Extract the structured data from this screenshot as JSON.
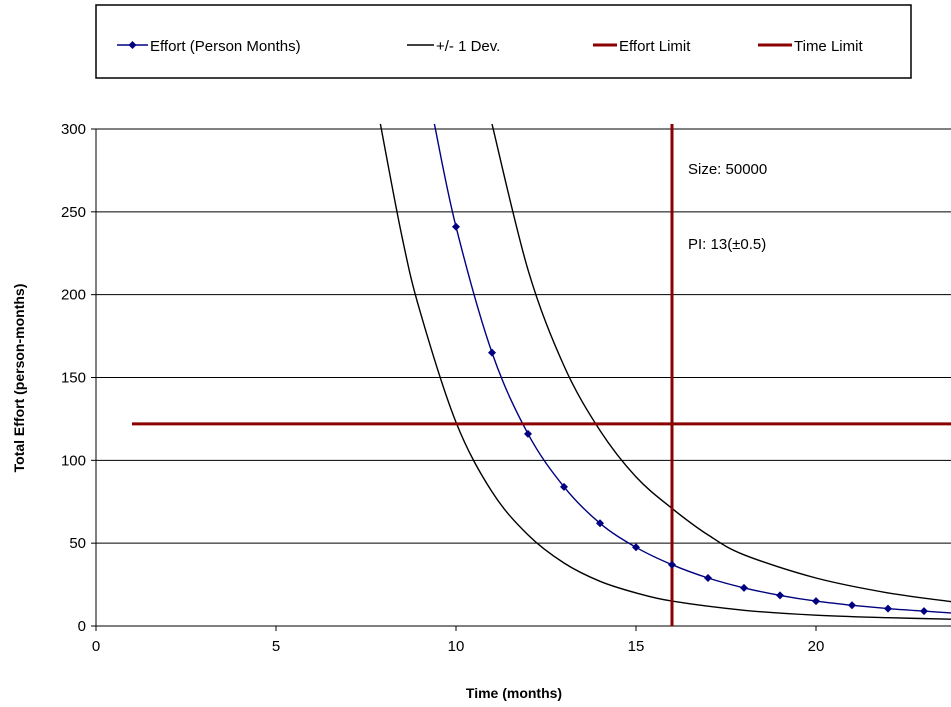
{
  "chart_data": {
    "type": "line",
    "title": "",
    "xlabel": "Time (months)",
    "ylabel": "Total Effort (person-months)",
    "xlim": [
      0,
      24
    ],
    "ylim": [
      0,
      300
    ],
    "xticks": [
      "0",
      "5",
      "10",
      "15",
      "20"
    ],
    "yticks": [
      "0",
      "50",
      "100",
      "150",
      "200",
      "250",
      "300"
    ],
    "grid": "horizontal",
    "legend_position": "top",
    "annotations": [
      "Size:  50000",
      "PI:  13(±0.5)"
    ],
    "series": [
      {
        "name": "Effort (Person Months)",
        "color": "#000080",
        "marker": "diamond",
        "x": [
          9.4,
          10,
          11,
          12,
          13,
          14,
          15,
          16,
          17,
          18,
          19,
          20,
          21,
          22,
          23,
          24
        ],
        "y": [
          303,
          241,
          165,
          116,
          84,
          62,
          47.5,
          37,
          29,
          23,
          18.5,
          15,
          12.5,
          10.5,
          9,
          7.5
        ],
        "marker_x": [
          10,
          11,
          12,
          13,
          14,
          15,
          16,
          17,
          18,
          19,
          20,
          21,
          22,
          23
        ]
      },
      {
        "name": "+/- 1 Dev.",
        "color": "#000000",
        "marker": "none",
        "x": [
          7.9,
          8.5,
          9,
          10,
          11,
          12,
          13,
          14,
          15,
          16,
          18,
          20,
          22,
          24
        ],
        "y": [
          303,
          235,
          190,
          123,
          81,
          55,
          38,
          27,
          20,
          15,
          9.5,
          6.5,
          5,
          4
        ]
      },
      {
        "name": "",
        "color": "#000000",
        "marker": "none",
        "x": [
          11,
          12,
          13,
          14,
          15,
          16,
          17,
          18,
          20,
          22,
          24
        ],
        "y": [
          303,
          215,
          157,
          118,
          90,
          71,
          55,
          43,
          29,
          20,
          14
        ]
      },
      {
        "name": "Effort Limit",
        "color": "#8B0000",
        "marker": "none",
        "x": [
          1,
          24
        ],
        "y": [
          122,
          122
        ]
      },
      {
        "name": "Time Limit",
        "color": "#8B0000",
        "marker": "none",
        "x": [
          16,
          16
        ],
        "y": [
          0,
          303
        ]
      }
    ]
  }
}
